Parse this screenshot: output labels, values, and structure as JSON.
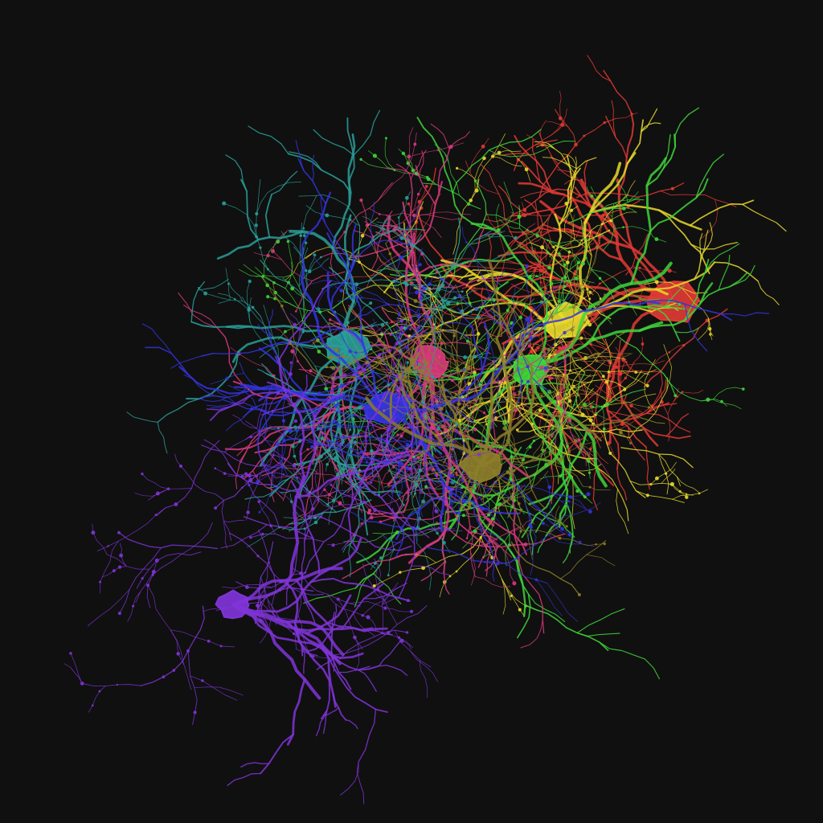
{
  "image": {
    "background": "#101010"
  },
  "neurons": [
    {
      "name": "red-neuron",
      "color": "#e03a34"
    },
    {
      "name": "yellow-neuron",
      "color": "#e6d92d"
    },
    {
      "name": "green-neuron",
      "color": "#3fd43a"
    },
    {
      "name": "magenta-neuron",
      "color": "#d83a7c"
    },
    {
      "name": "teal-neuron",
      "color": "#2a9d98"
    },
    {
      "name": "blue-neuron",
      "color": "#3434de"
    },
    {
      "name": "olive-neuron",
      "color": "#8c7d2a"
    },
    {
      "name": "violet-neuron",
      "color": "#8034d8"
    }
  ]
}
